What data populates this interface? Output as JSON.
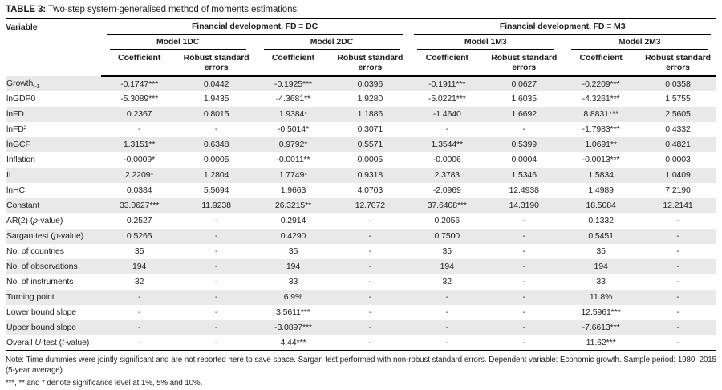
{
  "title": {
    "label": "TABLE 3:",
    "text": "Two-step system-generalised method of moments estimations."
  },
  "table": {
    "variable_header": "Variable",
    "groups": [
      {
        "label": "Financial development, FD ≡ DC",
        "models": [
          "Model 1DC",
          "Model 2DC"
        ]
      },
      {
        "label": "Financial development, FD ≡ M3",
        "models": [
          "Model 1M3",
          "Model 2M3"
        ]
      }
    ],
    "sub_headers": {
      "coefficient": "Coefficient",
      "robust": "Robust standard errors"
    },
    "rows": [
      {
        "name": [
          [
            "Growth",
            ""
          ],
          [
            "t-1",
            "sub"
          ]
        ],
        "values": [
          "-0.1747***",
          "0.0442",
          "-0.1925***",
          "0.0396",
          "-0.1911***",
          "0.0627",
          "-0.2209***",
          "0.0358"
        ]
      },
      {
        "name": [
          [
            "lnGDP0",
            ""
          ]
        ],
        "values": [
          "-5.3089***",
          "1.9435",
          "-4.3681**",
          "1.9280",
          "-5.0221***",
          "1.6035",
          "-4.3261***",
          "1.5755"
        ]
      },
      {
        "name": [
          [
            "lnFD",
            ""
          ]
        ],
        "values": [
          "0.2367",
          "0.8015",
          "1.9384*",
          "1.1886",
          "-1.4640",
          "1.6692",
          "8.8831***",
          "2.5605"
        ]
      },
      {
        "name": [
          [
            "lnFD²",
            ""
          ]
        ],
        "values": [
          "-",
          "-",
          "-0.5014*",
          "0.3071",
          "-",
          "-",
          "-1.7983***",
          "0.4332"
        ]
      },
      {
        "name": [
          [
            "lnGCF",
            ""
          ]
        ],
        "values": [
          "1.3151**",
          "0.6348",
          "0.9792*",
          "0.5571",
          "1.3544**",
          "0.5399",
          "1.0691**",
          "0.4821"
        ]
      },
      {
        "name": [
          [
            "Inflation",
            ""
          ]
        ],
        "values": [
          "-0.0009*",
          "0.0005",
          "-0.0011**",
          "0.0005",
          "-0.0006",
          "0.0004",
          "-0.0013***",
          "0.0003"
        ]
      },
      {
        "name": [
          [
            "IL",
            ""
          ]
        ],
        "values": [
          "2.2209*",
          "1.2804",
          "1.7749*",
          "0.9318",
          "2.3783",
          "1.5346",
          "1.5834",
          "1.0409"
        ]
      },
      {
        "name": [
          [
            "lnHC",
            ""
          ]
        ],
        "values": [
          "0.0384",
          "5.5694",
          "1.9663",
          "4.0703",
          "-2.0969",
          "12.4938",
          "1.4989",
          "7.2190"
        ]
      },
      {
        "name": [
          [
            "Constant",
            ""
          ]
        ],
        "values": [
          "33.0627***",
          "11.9238",
          "26.3215**",
          "12.7072",
          "37.6408***",
          "14.3190",
          "18.5084",
          "12.2141"
        ]
      },
      {
        "name": [
          [
            "AR(2) (",
            ""
          ],
          [
            "p",
            "i"
          ],
          [
            "-value)",
            ""
          ]
        ],
        "values": [
          "0.2527",
          "-",
          "0.2914",
          "-",
          "0.2056",
          "-",
          "0.1332",
          "-"
        ]
      },
      {
        "name": [
          [
            "Sargan test (",
            ""
          ],
          [
            "p",
            "i"
          ],
          [
            "-value)",
            ""
          ]
        ],
        "values": [
          "0.5265",
          "-",
          "0.4290",
          "-",
          "0.7500",
          "-",
          "0.5451",
          "-"
        ]
      },
      {
        "name": [
          [
            "No. of countries",
            ""
          ]
        ],
        "values": [
          "35",
          "-",
          "35",
          "-",
          "35",
          "-",
          "35",
          "-"
        ]
      },
      {
        "name": [
          [
            "No. of observations",
            ""
          ]
        ],
        "values": [
          "194",
          "-",
          "194",
          "-",
          "194",
          "-",
          "194",
          "-"
        ]
      },
      {
        "name": [
          [
            "No. of instruments",
            ""
          ]
        ],
        "values": [
          "32",
          "-",
          "33",
          "-",
          "32",
          "-",
          "33",
          "-"
        ]
      },
      {
        "name": [
          [
            "Turning point",
            ""
          ]
        ],
        "values": [
          "-",
          "-",
          "6.9%",
          "-",
          "-",
          "-",
          "11.8%",
          "-"
        ]
      },
      {
        "name": [
          [
            "Lower bound slope",
            ""
          ]
        ],
        "values": [
          "-",
          "-",
          "3.5611***",
          "-",
          "-",
          "-",
          "12.5961***",
          "-"
        ]
      },
      {
        "name": [
          [
            "Upper bound slope",
            ""
          ]
        ],
        "values": [
          "-",
          "-",
          "-3.0897***",
          "-",
          "-",
          "-",
          "-7.6613***",
          "-"
        ]
      },
      {
        "name": [
          [
            "Overall ",
            ""
          ],
          [
            "U",
            "i"
          ],
          [
            "-test (",
            ""
          ],
          [
            "t",
            "i"
          ],
          [
            "-value)",
            ""
          ]
        ],
        "values": [
          "-",
          "-",
          "4.44***",
          "-",
          "-",
          "-",
          "11.62***",
          "-"
        ]
      }
    ]
  },
  "notes": {
    "main": "Note: Time dummies were jointly significant and are not reported here to save space. Sargan test performed with non-robust standard errors. Dependent variable: Economic growth. Sample period: 1980–2015 (5-year average).",
    "significance": "***, ** and * denote significance level at 1%, 5% and 10%."
  },
  "colors": {
    "stripe": "#e9e9e9",
    "rule": "#000000",
    "text": "#1f1f1f"
  }
}
